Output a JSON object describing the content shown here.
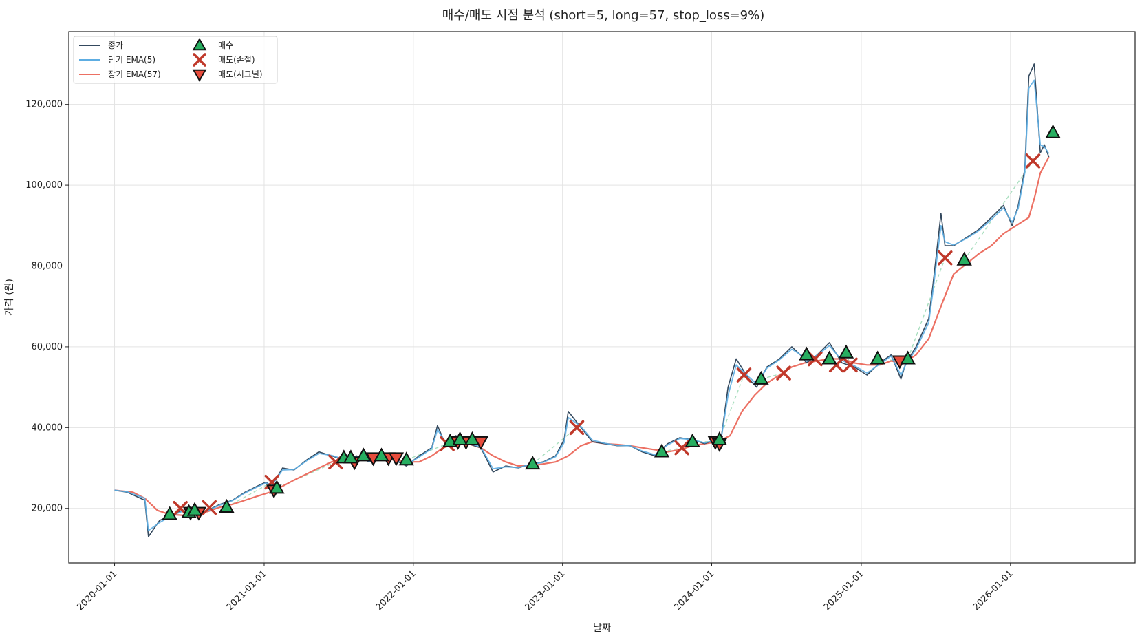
{
  "chart_data": {
    "type": "line",
    "title": "매수/매도 시점 분석 (short=5, long=57, stop_loss=9%)",
    "xlabel": "날짜",
    "ylabel": "가격 (원)",
    "xlim": [
      "2019-09-11",
      "2026-11-02"
    ],
    "ylim": [
      6500,
      138000
    ],
    "grid": true,
    "legend_position": "top-left",
    "x_ticks": [
      "2020-01-01",
      "2021-01-01",
      "2022-01-01",
      "2023-01-01",
      "2024-01-01",
      "2025-01-01",
      "2026-01-01"
    ],
    "y_ticks": [
      20000,
      40000,
      60000,
      80000,
      100000,
      120000
    ],
    "y_tick_labels": [
      "20,000",
      "40,000",
      "60,000",
      "80,000",
      "100,000",
      "120,000"
    ],
    "colors": {
      "close": "#34495e",
      "short_ema": "#5dade2",
      "long_ema": "#ec7063",
      "buy": "#27ae60",
      "stop_loss": "#c0392b",
      "signal_sell": "#e74c3c",
      "trade_path": "#a9dfbf"
    },
    "series": [
      {
        "name": "종가",
        "key": "close",
        "x": [
          "2020-01-01",
          "2020-02-01",
          "2020-03-15",
          "2020-03-24",
          "2020-04-20",
          "2020-05-20",
          "2020-06-15",
          "2020-07-15",
          "2020-08-15",
          "2020-09-15",
          "2020-10-15",
          "2020-11-15",
          "2020-12-15",
          "2021-01-05",
          "2021-01-20",
          "2021-02-15",
          "2021-03-15",
          "2021-04-15",
          "2021-05-15",
          "2021-06-15",
          "2021-07-15",
          "2021-08-15",
          "2021-09-15",
          "2021-10-15",
          "2021-11-15",
          "2021-12-15",
          "2022-01-15",
          "2022-02-15",
          "2022-03-01",
          "2022-03-20",
          "2022-04-15",
          "2022-05-15",
          "2022-06-15",
          "2022-07-15",
          "2022-08-15",
          "2022-09-15",
          "2022-10-15",
          "2022-11-15",
          "2022-12-15",
          "2023-01-05",
          "2023-01-15",
          "2023-02-15",
          "2023-03-15",
          "2023-04-15",
          "2023-05-15",
          "2023-06-15",
          "2023-07-15",
          "2023-08-15",
          "2023-09-15",
          "2023-10-15",
          "2023-11-15",
          "2023-12-15",
          "2024-01-10",
          "2024-01-25",
          "2024-02-10",
          "2024-03-01",
          "2024-04-01",
          "2024-04-20",
          "2024-05-15",
          "2024-06-15",
          "2024-07-15",
          "2024-08-05",
          "2024-08-20",
          "2024-09-15",
          "2024-10-15",
          "2024-11-15",
          "2024-12-15",
          "2025-01-15",
          "2025-02-15",
          "2025-03-15",
          "2025-04-08",
          "2025-04-20",
          "2025-05-15",
          "2025-06-15",
          "2025-06-25",
          "2025-07-15",
          "2025-07-25",
          "2025-08-15",
          "2025-09-15",
          "2025-10-15",
          "2025-11-15",
          "2025-12-15",
          "2026-01-05",
          "2026-01-20",
          "2026-02-05",
          "2026-02-15",
          "2026-02-28",
          "2026-03-15",
          "2026-03-25",
          "2026-04-05"
        ],
        "values": [
          24500,
          24000,
          22000,
          13000,
          17000,
          18500,
          19500,
          18500,
          19500,
          21000,
          22000,
          24000,
          25500,
          26500,
          25500,
          30000,
          29500,
          32000,
          34000,
          33000,
          32000,
          33000,
          31500,
          33000,
          32000,
          30500,
          33000,
          35000,
          40500,
          36000,
          38000,
          36000,
          35000,
          29000,
          30500,
          30000,
          31000,
          31500,
          33000,
          37000,
          44000,
          40000,
          36500,
          36000,
          35500,
          35500,
          34000,
          33000,
          36000,
          37500,
          37000,
          36000,
          37000,
          38000,
          50000,
          57000,
          52000,
          50000,
          55000,
          57000,
          60000,
          58000,
          56000,
          58000,
          61000,
          56000,
          55000,
          53000,
          56000,
          58000,
          52000,
          56000,
          60000,
          67000,
          75000,
          93000,
          85000,
          85000,
          87000,
          89000,
          92000,
          95000,
          90000,
          95000,
          104000,
          127000,
          130000,
          108000,
          110000,
          107000
        ]
      },
      {
        "name": "단기 EMA(5)",
        "key": "short_ema",
        "x": [
          "2020-01-01",
          "2020-02-01",
          "2020-03-15",
          "2020-03-24",
          "2020-04-20",
          "2020-05-20",
          "2020-06-15",
          "2020-07-15",
          "2020-08-15",
          "2020-09-15",
          "2020-10-15",
          "2020-11-15",
          "2020-12-15",
          "2021-01-05",
          "2021-01-20",
          "2021-02-15",
          "2021-03-15",
          "2021-04-15",
          "2021-05-15",
          "2021-06-15",
          "2021-07-15",
          "2021-08-15",
          "2021-09-15",
          "2021-10-15",
          "2021-11-15",
          "2021-12-15",
          "2022-01-15",
          "2022-02-15",
          "2022-03-01",
          "2022-03-20",
          "2022-04-15",
          "2022-05-15",
          "2022-06-15",
          "2022-07-15",
          "2022-08-15",
          "2022-09-15",
          "2022-10-15",
          "2022-11-15",
          "2022-12-15",
          "2023-01-05",
          "2023-01-15",
          "2023-02-15",
          "2023-03-15",
          "2023-04-15",
          "2023-05-15",
          "2023-06-15",
          "2023-07-15",
          "2023-08-15",
          "2023-09-15",
          "2023-10-15",
          "2023-11-15",
          "2023-12-15",
          "2024-01-10",
          "2024-01-25",
          "2024-02-10",
          "2024-03-01",
          "2024-04-01",
          "2024-04-20",
          "2024-05-15",
          "2024-06-15",
          "2024-07-15",
          "2024-08-05",
          "2024-08-20",
          "2024-09-15",
          "2024-10-15",
          "2024-11-15",
          "2024-12-15",
          "2025-01-15",
          "2025-02-15",
          "2025-03-15",
          "2025-04-08",
          "2025-04-20",
          "2025-05-15",
          "2025-06-15",
          "2025-06-25",
          "2025-07-15",
          "2025-07-25",
          "2025-08-15",
          "2025-09-15",
          "2025-10-15",
          "2025-11-15",
          "2025-12-15",
          "2026-01-05",
          "2026-01-20",
          "2026-02-05",
          "2026-02-15",
          "2026-02-28",
          "2026-03-15",
          "2026-03-25",
          "2026-04-05"
        ],
        "values": [
          24500,
          24100,
          22500,
          14500,
          16500,
          18200,
          19300,
          18700,
          19400,
          20800,
          21900,
          23800,
          25300,
          26300,
          25800,
          29500,
          29600,
          31800,
          33600,
          33100,
          32200,
          32900,
          31700,
          32800,
          32100,
          30800,
          32700,
          34800,
          39500,
          36500,
          37800,
          36200,
          35200,
          29800,
          30300,
          30100,
          30900,
          31400,
          32800,
          36300,
          42500,
          40300,
          36900,
          36100,
          35600,
          35500,
          34200,
          33300,
          35700,
          37300,
          37000,
          36200,
          36900,
          37800,
          48000,
          55500,
          52500,
          50800,
          54700,
          56800,
          59400,
          58100,
          56400,
          57900,
          60300,
          56600,
          55300,
          53500,
          55700,
          57700,
          53000,
          55600,
          59400,
          66000,
          73500,
          90000,
          86000,
          85200,
          86800,
          88700,
          91500,
          94400,
          90800,
          94300,
          103000,
          124000,
          126000,
          110000,
          109500,
          107800
        ]
      },
      {
        "name": "장기 EMA(57)",
        "key": "long_ema",
        "x": [
          "2020-01-01",
          "2020-02-15",
          "2020-03-15",
          "2020-04-15",
          "2020-05-15",
          "2020-06-15",
          "2020-07-15",
          "2020-08-15",
          "2020-09-15",
          "2020-10-15",
          "2020-11-15",
          "2020-12-15",
          "2021-01-15",
          "2021-02-15",
          "2021-03-15",
          "2021-04-15",
          "2021-05-15",
          "2021-06-15",
          "2021-07-15",
          "2021-08-15",
          "2021-09-15",
          "2021-10-15",
          "2021-11-15",
          "2021-12-15",
          "2022-01-15",
          "2022-02-15",
          "2022-03-15",
          "2022-04-15",
          "2022-05-15",
          "2022-06-15",
          "2022-07-15",
          "2022-08-15",
          "2022-09-15",
          "2022-10-15",
          "2022-11-15",
          "2022-12-15",
          "2023-01-15",
          "2023-02-15",
          "2023-03-15",
          "2023-04-15",
          "2023-05-15",
          "2023-06-15",
          "2023-07-15",
          "2023-08-15",
          "2023-09-15",
          "2023-10-15",
          "2023-11-15",
          "2023-12-15",
          "2024-01-15",
          "2024-02-15",
          "2024-03-15",
          "2024-04-15",
          "2024-05-15",
          "2024-06-15",
          "2024-07-15",
          "2024-08-15",
          "2024-09-15",
          "2024-10-15",
          "2024-11-15",
          "2024-12-15",
          "2025-01-15",
          "2025-02-15",
          "2025-03-15",
          "2025-04-15",
          "2025-05-15",
          "2025-06-15",
          "2025-07-15",
          "2025-08-15",
          "2025-09-15",
          "2025-10-15",
          "2025-11-15",
          "2025-12-15",
          "2026-01-15",
          "2026-02-15",
          "2026-03-01",
          "2026-03-15",
          "2026-04-05"
        ],
        "values": [
          24500,
          24000,
          22500,
          19500,
          18500,
          18300,
          18700,
          19200,
          20300,
          21000,
          22000,
          23000,
          24000,
          25500,
          27000,
          28500,
          30000,
          31500,
          32000,
          32200,
          32000,
          32200,
          32000,
          31500,
          31500,
          33000,
          35000,
          36000,
          36000,
          35000,
          33000,
          31500,
          30500,
          30500,
          31000,
          31500,
          33000,
          35500,
          36500,
          36000,
          35800,
          35500,
          35000,
          34500,
          34000,
          34500,
          35500,
          36000,
          36500,
          38000,
          44000,
          48000,
          51000,
          53000,
          55000,
          56000,
          56500,
          57000,
          57000,
          56000,
          55500,
          55500,
          56500,
          56000,
          58000,
          62000,
          70000,
          78000,
          80500,
          83000,
          85000,
          88000,
          90000,
          92000,
          97000,
          103000,
          107000
        ]
      }
    ],
    "trade_markers": {
      "buy": [
        {
          "x": "2020-05-15",
          "y": 18500
        },
        {
          "x": "2020-07-01",
          "y": 19000
        },
        {
          "x": "2020-07-15",
          "y": 19500
        },
        {
          "x": "2020-10-01",
          "y": 20300
        },
        {
          "x": "2021-02-01",
          "y": 25000
        },
        {
          "x": "2021-07-15",
          "y": 32500
        },
        {
          "x": "2021-08-01",
          "y": 32500
        },
        {
          "x": "2021-09-01",
          "y": 33000
        },
        {
          "x": "2021-10-15",
          "y": 33000
        },
        {
          "x": "2021-12-15",
          "y": 32000
        },
        {
          "x": "2022-04-01",
          "y": 36500
        },
        {
          "x": "2022-04-25",
          "y": 37000
        },
        {
          "x": "2022-05-25",
          "y": 37000
        },
        {
          "x": "2022-10-20",
          "y": 31000
        },
        {
          "x": "2023-09-01",
          "y": 34000
        },
        {
          "x": "2023-11-15",
          "y": 36500
        },
        {
          "x": "2024-01-20",
          "y": 37000
        },
        {
          "x": "2024-05-01",
          "y": 52000
        },
        {
          "x": "2024-08-20",
          "y": 58000
        },
        {
          "x": "2024-10-15",
          "y": 57000
        },
        {
          "x": "2024-11-25",
          "y": 58500
        },
        {
          "x": "2025-02-10",
          "y": 57000
        },
        {
          "x": "2025-04-25",
          "y": 57000
        },
        {
          "x": "2025-09-10",
          "y": 81500
        },
        {
          "x": "2026-04-15",
          "y": 113000
        }
      ],
      "stop_loss": [
        {
          "x": "2020-06-10",
          "y": 20000
        },
        {
          "x": "2020-08-20",
          "y": 20200
        },
        {
          "x": "2021-01-20",
          "y": 26500
        },
        {
          "x": "2021-06-25",
          "y": 31500
        },
        {
          "x": "2022-03-25",
          "y": 36000
        },
        {
          "x": "2023-02-05",
          "y": 40000
        },
        {
          "x": "2023-10-20",
          "y": 35000
        },
        {
          "x": "2024-03-20",
          "y": 53000
        },
        {
          "x": "2024-06-25",
          "y": 53500
        },
        {
          "x": "2024-09-10",
          "y": 57000
        },
        {
          "x": "2024-11-01",
          "y": 55500
        },
        {
          "x": "2024-12-05",
          "y": 55500
        },
        {
          "x": "2025-07-25",
          "y": 82000
        },
        {
          "x": "2026-02-25",
          "y": 106000
        }
      ],
      "signal_sell": [
        {
          "x": "2020-07-05",
          "y": 19000
        },
        {
          "x": "2020-07-25",
          "y": 19000
        },
        {
          "x": "2021-01-25",
          "y": 24500
        },
        {
          "x": "2021-08-10",
          "y": 31500
        },
        {
          "x": "2021-09-25",
          "y": 32500
        },
        {
          "x": "2021-11-01",
          "y": 32500
        },
        {
          "x": "2021-11-20",
          "y": 32500
        },
        {
          "x": "2022-04-20",
          "y": 36500
        },
        {
          "x": "2022-05-10",
          "y": 36500
        },
        {
          "x": "2022-06-15",
          "y": 36500
        },
        {
          "x": "2024-01-10",
          "y": 36500
        },
        {
          "x": "2024-01-20",
          "y": 36000
        },
        {
          "x": "2025-04-05",
          "y": 56500
        }
      ]
    },
    "legend": [
      {
        "label": "종가",
        "kind": "line",
        "key": "close"
      },
      {
        "label": "단기 EMA(5)",
        "kind": "line",
        "key": "short_ema"
      },
      {
        "label": "장기 EMA(57)",
        "kind": "line",
        "key": "long_ema"
      },
      {
        "label": "매수",
        "kind": "tri-up",
        "key": "buy"
      },
      {
        "label": "매도(손절)",
        "kind": "cross",
        "key": "stop_loss"
      },
      {
        "label": "매도(시그널)",
        "kind": "tri-down",
        "key": "signal_sell"
      }
    ]
  }
}
